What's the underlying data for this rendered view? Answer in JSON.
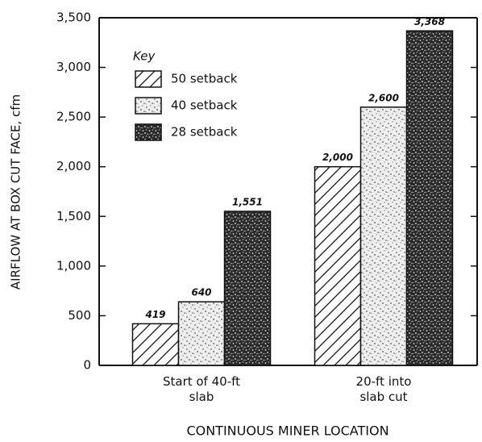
{
  "chart_data": {
    "type": "bar",
    "categories": [
      "Start of 40-ft\nslab",
      "20-ft into\nslab cut"
    ],
    "series": [
      {
        "name": "50 setback",
        "values": [
          419,
          2000
        ],
        "value_labels": [
          "419",
          "2,000"
        ]
      },
      {
        "name": "40 setback",
        "values": [
          640,
          2600
        ],
        "value_labels": [
          "640",
          "2,600"
        ]
      },
      {
        "name": "28 setback",
        "values": [
          1551,
          3368
        ],
        "value_labels": [
          "1,551",
          "3,368"
        ]
      }
    ],
    "legend_title": "Key",
    "xlabel": "CONTINUOUS MINER LOCATION",
    "ylabel": "AIRFLOW AT BOX CUT FACE, cfm",
    "ylim": [
      0,
      3500
    ],
    "yticks": [
      0,
      500,
      {
        "value": 1000,
        "label": "1,000"
      },
      {
        "value": 1500,
        "label": "1,500"
      },
      {
        "value": 2000,
        "label": "2,000"
      },
      {
        "value": 2500,
        "label": "2,500"
      },
      {
        "value": 3000,
        "label": "3,000"
      },
      {
        "value": 3500,
        "label": "3,500"
      }
    ],
    "legend": "upper left",
    "grid": false
  }
}
